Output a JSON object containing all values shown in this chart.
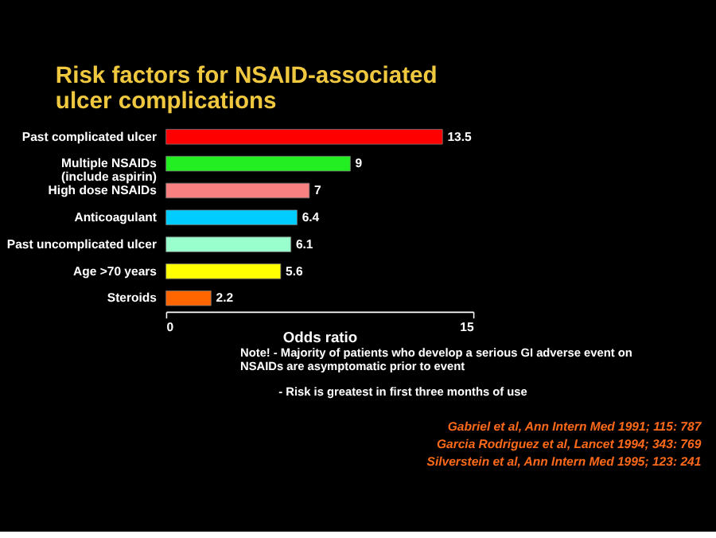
{
  "chart_data": {
    "type": "bar",
    "orientation": "horizontal",
    "title": "Risk factors for NSAID-associated\nulcer complications",
    "categories": [
      "Past complicated ulcer",
      "Multiple NSAIDs\n(include aspirin)",
      "High dose NSAIDs",
      "Anticoagulant",
      "Past uncomplicated ulcer",
      "Age >70 years",
      "Steroids"
    ],
    "values": [
      13.5,
      9,
      7,
      6.4,
      6.1,
      5.6,
      2.2
    ],
    "colors": [
      "#ff0000",
      "#22ee22",
      "#f88080",
      "#00ccff",
      "#99ffcc",
      "#ffff00",
      "#ff6600"
    ],
    "xlabel": "Odds ratio",
    "xlim": [
      0,
      15
    ],
    "xticks": [
      0,
      15
    ],
    "grid": false,
    "data_labels": true,
    "annotations": [
      "Note! -  Majority of patients who develop a serious GI adverse event on\nNSAIDs are asymptomatic prior to event",
      "-  Risk is greatest in first three months of use",
      "Gabriel et al, Ann Intern Med 1991; 115: 787",
      "Garcia Rodriguez et al, Lancet 1994; 343: 769",
      "Silverstein et al, Ann Intern Med 1995; 123: 241"
    ]
  }
}
